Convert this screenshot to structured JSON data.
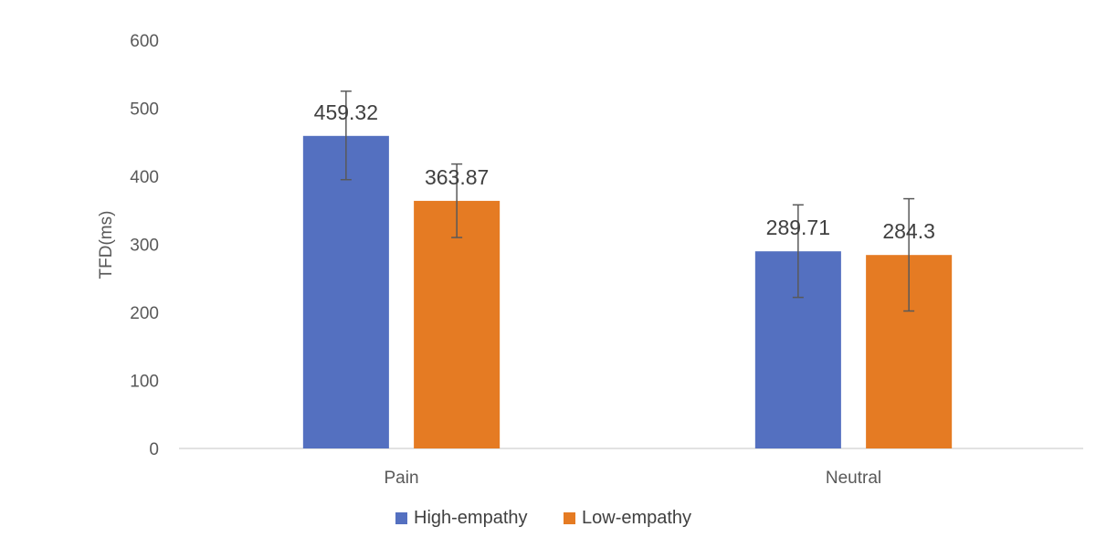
{
  "chart_data": {
    "type": "bar",
    "ylabel": "TFD(ms)",
    "ylim": [
      0,
      600
    ],
    "yticks": [
      0,
      100,
      200,
      300,
      400,
      500,
      600
    ],
    "categories": [
      "Pain",
      "Neutral"
    ],
    "series": [
      {
        "name": "High-empathy",
        "color": "#5470c0",
        "values": [
          459.32,
          289.71
        ],
        "value_labels": [
          "459.32",
          "289.71"
        ],
        "error_low": [
          395,
          222
        ],
        "error_high": [
          525,
          358
        ]
      },
      {
        "name": "Low-empathy",
        "color": "#e57b23",
        "values": [
          363.87,
          284.3
        ],
        "value_labels": [
          "363.87",
          "284.3"
        ],
        "error_low": [
          310,
          202
        ],
        "error_high": [
          418,
          367
        ]
      }
    ],
    "grid": false,
    "legend": "bottom"
  }
}
